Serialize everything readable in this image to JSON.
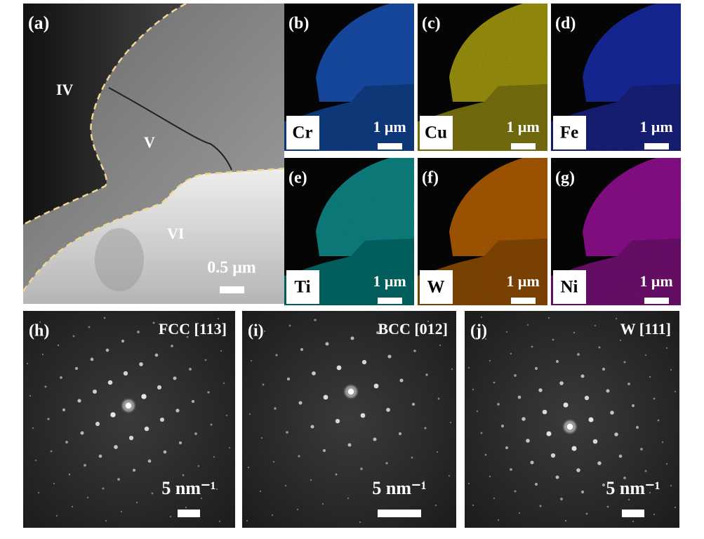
{
  "panel_a": {
    "label": "(a)",
    "regions": [
      "IV",
      "V",
      "VI"
    ],
    "scale_bar": "0.5 μm"
  },
  "maps": [
    {
      "label": "(b)",
      "element": "Cr",
      "scale_bar": "1 μm"
    },
    {
      "label": "(c)",
      "element": "Cu",
      "scale_bar": "1 μm"
    },
    {
      "label": "(d)",
      "element": "Fe",
      "scale_bar": "1 μm"
    },
    {
      "label": "(e)",
      "element": "Ti",
      "scale_bar": "1 μm"
    },
    {
      "label": "(f)",
      "element": "W",
      "scale_bar": "1 μm"
    },
    {
      "label": "(g)",
      "element": "Ni",
      "scale_bar": "1 μm"
    }
  ],
  "patterns": [
    {
      "label": "(h)",
      "zone": "FCC [113]",
      "scale_bar": "5 nm⁻¹"
    },
    {
      "label": "(i)",
      "zone": "BCC [012]",
      "scale_bar": "5 nm⁻¹"
    },
    {
      "label": "(j)",
      "zone": "W [111]",
      "scale_bar": "5 nm⁻¹"
    }
  ]
}
